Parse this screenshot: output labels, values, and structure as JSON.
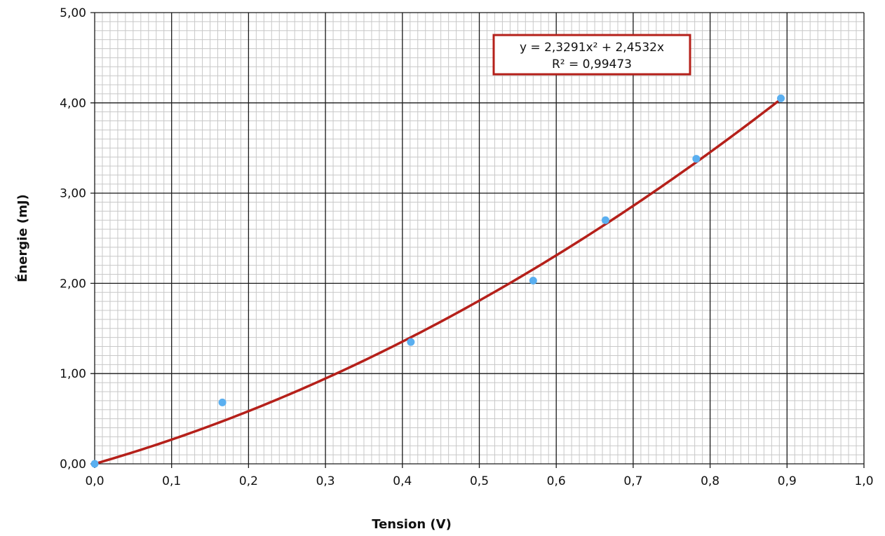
{
  "chart_data": {
    "type": "scatter",
    "title": "",
    "xlabel": "Tension (V)",
    "ylabel": "Énergie (mJ)",
    "xlim": [
      0,
      1.0
    ],
    "ylim": [
      0,
      5.0
    ],
    "x_ticks": [
      "0,0",
      "0,1",
      "0,2",
      "0,3",
      "0,4",
      "0,5",
      "0,6",
      "0,7",
      "0,8",
      "0,9",
      "1,0"
    ],
    "y_ticks": [
      "0,00",
      "1,00",
      "2,00",
      "3,00",
      "4,00",
      "5,00"
    ],
    "grid": true,
    "minor_grid": true,
    "series": [
      {
        "x": [
          0.0,
          0.166,
          0.411,
          0.57,
          0.664,
          0.782,
          0.892
        ],
        "y": [
          0.0,
          0.68,
          1.35,
          2.03,
          2.7,
          3.38,
          4.05
        ],
        "color": "#5aaff0"
      }
    ],
    "trendline": {
      "type": "polynomial",
      "a": 2.3291,
      "b": 2.4532,
      "c": 0,
      "x_range": [
        0,
        0.892
      ],
      "color": "#b5201a",
      "equation": "y = 2,3291x² + 2,4532x",
      "r_squared": "R² = 0,99473",
      "legend_position": "top-right"
    }
  },
  "colors": {
    "major_grid": "#1a1a1a",
    "minor_grid": "#c8c8c8",
    "trendline": "#b5201a",
    "marker": "#5aaff0"
  }
}
